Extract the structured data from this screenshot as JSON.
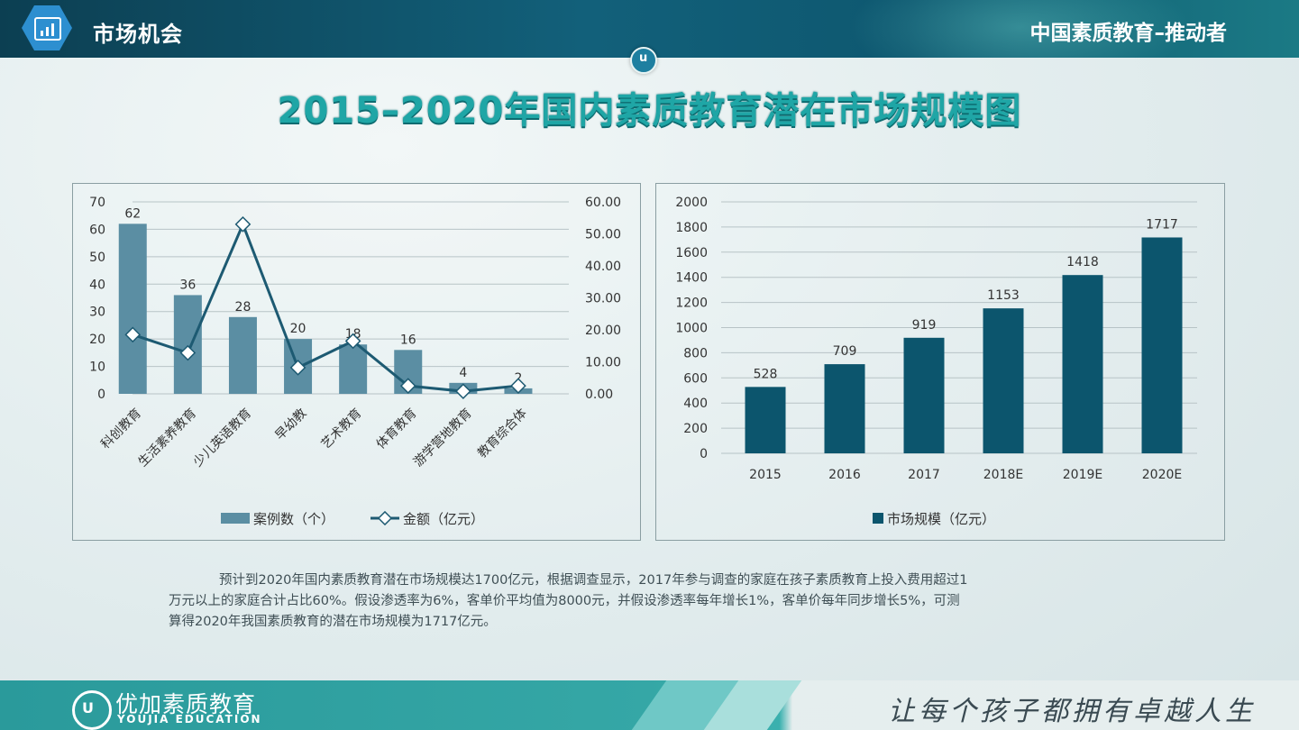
{
  "header": {
    "section_title": "市场机会",
    "slogan": "中国素质教育–推动者",
    "badge_letter": "u"
  },
  "main_title": "2015–2020年国内素质教育潜在市场规模图",
  "colors": {
    "header_bg": "#0c3f52",
    "bar_left": "#5b8ea3",
    "line_left": "#1d5a72",
    "bar_right": "#0c556d",
    "title": "#1fa6a6"
  },
  "chart_data": [
    {
      "type": "bar",
      "categories": [
        "科创教育",
        "生活素养教育",
        "少儿英语教育",
        "早幼教",
        "艺术教育",
        "体育教育",
        "游学营地教育",
        "教育综合体"
      ],
      "series": [
        {
          "name": "案例数（个）",
          "type": "bar",
          "axis": "left",
          "values": [
            62,
            36,
            28,
            20,
            18,
            16,
            4,
            2
          ]
        },
        {
          "name": "金额（亿元）",
          "type": "line",
          "axis": "right",
          "values": [
            18.5,
            12.8,
            53.0,
            8.2,
            16.5,
            2.5,
            0.8,
            2.5
          ]
        }
      ],
      "ylim_left": [
        0,
        70
      ],
      "yticks_left": [
        "0",
        "10",
        "20",
        "30",
        "40",
        "50",
        "60",
        "70"
      ],
      "ylim_right": [
        0,
        60
      ],
      "yticks_right": [
        "0.00",
        "10.00",
        "20.00",
        "30.00",
        "40.00",
        "50.00",
        "60.00"
      ],
      "bar_labels": [
        "62",
        "36",
        "28",
        "20",
        "18",
        "16",
        "4",
        "2"
      ],
      "grid": true,
      "legend": "bottom"
    },
    {
      "type": "bar",
      "categories": [
        "2015",
        "2016",
        "2017",
        "2018E",
        "2019E",
        "2020E"
      ],
      "series": [
        {
          "name": "市场规模（亿元）",
          "values": [
            528,
            709,
            919,
            1153,
            1418,
            1717
          ]
        }
      ],
      "ylim": [
        0,
        2000
      ],
      "yticks": [
        "0",
        "200",
        "400",
        "600",
        "800",
        "1000",
        "1200",
        "1400",
        "1600",
        "1800",
        "2000"
      ],
      "bar_labels": [
        "528",
        "709",
        "919",
        "1153",
        "1418",
        "1717"
      ],
      "grid": true,
      "legend": "bottom"
    }
  ],
  "paragraph": {
    "lines": [
      "预计到2020年国内素质教育潜在市场规模达1700亿元，根据调查显示，2017年参与调查的家庭在孩子素质教育上投入费用超过1",
      "万元以上的家庭合计占比60%。假设渗透率为6%，客单价平均值为8000元，并假设渗透率每年增长1%，客单价每年同步增长5%，可测",
      "算得2020年我国素质教育的潜在市场规模为1717亿元。"
    ]
  },
  "footer": {
    "seal_letter": "U",
    "brand_cn": "优加素质教育",
    "brand_en": "YOUJIA EDUCATION",
    "motto": "让每个孩子都拥有卓越人生"
  }
}
